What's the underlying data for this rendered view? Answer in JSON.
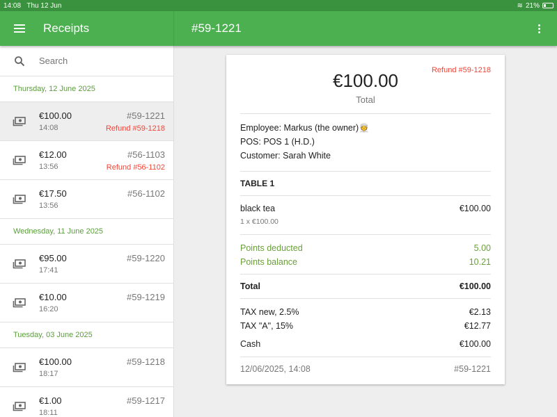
{
  "status": {
    "time": "14:08",
    "date": "Thu 12 Jun",
    "battery": "21%"
  },
  "appbar": {
    "title": "Receipts",
    "receipt": "#59-1221"
  },
  "search": {
    "placeholder": "Search"
  },
  "groups": [
    {
      "day": "Thursday, 12 June 2025",
      "rows": [
        {
          "amount": "€100.00",
          "time": "14:08",
          "number": "#59-1221",
          "refund": "Refund #59-1218",
          "selected": true
        },
        {
          "amount": "€12.00",
          "time": "13:56",
          "number": "#56-1103",
          "refund": "Refund #56-1102"
        },
        {
          "amount": "€17.50",
          "time": "13:56",
          "number": "#56-1102",
          "refund": ""
        }
      ]
    },
    {
      "day": "Wednesday, 11 June 2025",
      "rows": [
        {
          "amount": "€95.00",
          "time": "17:41",
          "number": "#59-1220",
          "refund": ""
        },
        {
          "amount": "€10.00",
          "time": "16:20",
          "number": "#59-1219",
          "refund": ""
        }
      ]
    },
    {
      "day": "Tuesday, 03 June 2025",
      "rows": [
        {
          "amount": "€100.00",
          "time": "18:17",
          "number": "#59-1218",
          "refund": ""
        },
        {
          "amount": "€1.00",
          "time": "18:11",
          "number": "#59-1217",
          "refund": ""
        }
      ]
    }
  ],
  "receipt": {
    "refund": "Refund #59-1218",
    "total": "€100.00",
    "total_label": "Total",
    "employee": "Employee: Markus (the owner)👳",
    "pos": "POS: POS 1 (H.D.)",
    "customer": "Customer: Sarah White",
    "section": "TABLE 1",
    "item": {
      "name": "black tea",
      "price": "€100.00",
      "qty": "1 x €100.00"
    },
    "points": [
      {
        "label": "Points deducted",
        "value": "5.00"
      },
      {
        "label": "Points balance",
        "value": "10.21"
      }
    ],
    "total_row": {
      "label": "Total",
      "value": "€100.00"
    },
    "taxes": [
      {
        "label": "TAX new,  2.5%",
        "value": "€2.13"
      },
      {
        "label": "TAX \"A\",  15%",
        "value": "€12.77"
      }
    ],
    "payment": {
      "label": "Cash",
      "value": "€100.00"
    },
    "footer": {
      "datetime": "12/06/2025, 14:08",
      "number": "#59-1221"
    }
  }
}
